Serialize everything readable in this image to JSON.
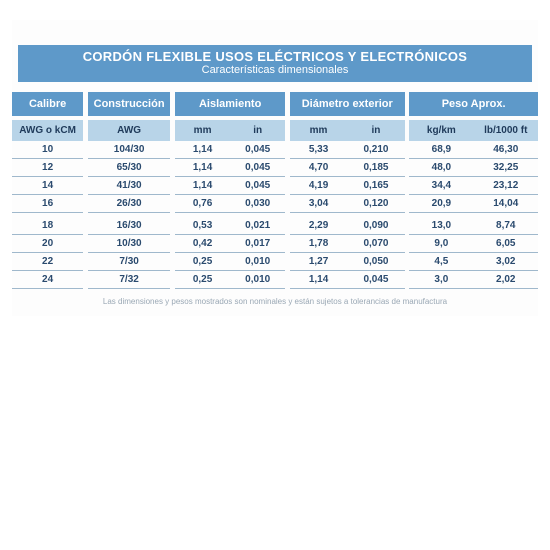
{
  "title": {
    "main": "CORDÓN FLEXIBLE USOS ELÉCTRICOS Y ELECTRÓNICOS",
    "sub": "Características dimensionales"
  },
  "headers": {
    "group": {
      "calibre": "Calibre",
      "construccion": "Construcción",
      "aislamiento": "Aislamiento",
      "diametro": "Diámetro exterior",
      "peso": "Peso Aprox."
    },
    "units": {
      "awg_kcm": "AWG o kCM",
      "awg": "AWG",
      "ais_mm": "mm",
      "ais_in": "in",
      "dia_mm": "mm",
      "dia_in": "in",
      "peso_kg": "kg/km",
      "peso_lb": "lb/1000 ft"
    }
  },
  "table": {
    "type": "table",
    "section1": [
      {
        "cal": "10",
        "con": "104/30",
        "ais_mm": "1,14",
        "ais_in": "0,045",
        "dia_mm": "5,33",
        "dia_in": "0,210",
        "kg": "68,9",
        "lb": "46,30"
      },
      {
        "cal": "12",
        "con": "65/30",
        "ais_mm": "1,14",
        "ais_in": "0,045",
        "dia_mm": "4,70",
        "dia_in": "0,185",
        "kg": "48,0",
        "lb": "32,25"
      },
      {
        "cal": "14",
        "con": "41/30",
        "ais_mm": "1,14",
        "ais_in": "0,045",
        "dia_mm": "4,19",
        "dia_in": "0,165",
        "kg": "34,4",
        "lb": "23,12"
      },
      {
        "cal": "16",
        "con": "26/30",
        "ais_mm": "0,76",
        "ais_in": "0,030",
        "dia_mm": "3,04",
        "dia_in": "0,120",
        "kg": "20,9",
        "lb": "14,04"
      }
    ],
    "section2": [
      {
        "cal": "18",
        "con": "16/30",
        "ais_mm": "0,53",
        "ais_in": "0,021",
        "dia_mm": "2,29",
        "dia_in": "0,090",
        "kg": "13,0",
        "lb": "8,74"
      },
      {
        "cal": "20",
        "con": "10/30",
        "ais_mm": "0,42",
        "ais_in": "0,017",
        "dia_mm": "1,78",
        "dia_in": "0,070",
        "kg": "9,0",
        "lb": "6,05"
      },
      {
        "cal": "22",
        "con": "7/30",
        "ais_mm": "0,25",
        "ais_in": "0,010",
        "dia_mm": "1,27",
        "dia_in": "0,050",
        "kg": "4,5",
        "lb": "3,02"
      },
      {
        "cal": "24",
        "con": "7/32",
        "ais_mm": "0,25",
        "ais_in": "0,010",
        "dia_mm": "1,14",
        "dia_in": "0,045",
        "kg": "3,0",
        "lb": "2,02"
      }
    ]
  },
  "footnote": "Las dimensiones y pesos mostrados son nominales y están sujetos a tolerancias de manufactura",
  "colors": {
    "band_bg": "#5e99c9",
    "band_text": "#ffffff",
    "subhdr_bg": "#b8d4e8",
    "subhdr_text": "#1f3a5a",
    "cell_text": "#2a4a6e",
    "rule": "#9fb8cc",
    "footnote": "#9aa8b5"
  },
  "typography": {
    "title_size_pt": 13,
    "subtitle_size_pt": 11,
    "header_size_pt": 11,
    "cell_size_pt": 10,
    "footnote_size_pt": 8,
    "family": "Arial"
  }
}
